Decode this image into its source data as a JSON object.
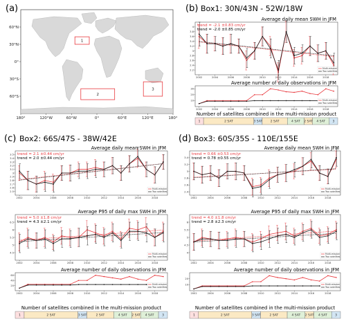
{
  "colors": {
    "red": "#e8383d",
    "black": "#1a1a1a",
    "map_land": "#d9d9d9",
    "region_box": "#e8383d",
    "sat2": "#fbe9c4",
    "sat3": "#d3e6f4",
    "sat4": "#dff0d8",
    "sat1": "#fde0e0"
  },
  "map": {
    "letter": "(a)",
    "lat_labels": [
      "60°N",
      "30°N",
      "0°",
      "30°S",
      "60°S"
    ],
    "lon_labels": [
      "180°",
      "120°W",
      "60°W",
      "0°",
      "60°E",
      "120°E",
      "180°"
    ],
    "regions": [
      {
        "label": "1",
        "lat": [
          30,
          43
        ],
        "lon": [
          -52,
          -18
        ]
      },
      {
        "label": "2",
        "lat": [
          -66,
          -47
        ],
        "lon": [
          -38,
          42
        ]
      },
      {
        "label": "3",
        "lat": [
          -60,
          -35
        ],
        "lon": [
          110,
          155
        ]
      }
    ]
  },
  "legend": {
    "multi": "Multi-mission",
    "two": "Two satellites"
  },
  "sat_bar_title": "Number of satellites combined in the multi-mission product",
  "sat_segments": [
    {
      "label": "1",
      "start": 2002,
      "end": 2003,
      "kind": "sat1"
    },
    {
      "label": "2 SAT",
      "start": 2003,
      "end": 2009,
      "kind": "sat2"
    },
    {
      "label": "3 SAT",
      "start": 2009,
      "end": 2010,
      "kind": "sat3"
    },
    {
      "label": "2 SAT",
      "start": 2010,
      "end": 2013,
      "kind": "sat2"
    },
    {
      "label": "4 SAT",
      "start": 2013,
      "end": 2015,
      "kind": "sat4"
    },
    {
      "label": "2 SAT",
      "start": 2015,
      "end": 2016,
      "kind": "sat2"
    },
    {
      "label": "4 SAT",
      "start": 2016,
      "end": 2018,
      "kind": "sat4"
    },
    {
      "label": "3",
      "start": 2018,
      "end": 2019,
      "kind": "sat3"
    }
  ],
  "chart_data": [
    {
      "id": "b",
      "letter": "(b)",
      "title": "Box1: 30N/43N - 52W/18W",
      "swh": {
        "type": "line",
        "subtitle": "Average daily mean SWH in JFM",
        "trend_red": "trend = -2.1 ±0.83 cm/yr",
        "trend_black": "trend = -2.0 ±0.85 cm/yr",
        "x": [
          2002,
          2003,
          2004,
          2005,
          2006,
          2007,
          2008,
          2009,
          2010,
          2011,
          2012,
          2013,
          2014,
          2015,
          2016,
          2017,
          2018,
          2019
        ],
        "ylim": [
          2.0,
          4.2
        ],
        "yticks": [
          2.2,
          2.4,
          2.6,
          2.8,
          3.0,
          3.2,
          3.4,
          3.6,
          3.8,
          4.0
        ],
        "series": [
          {
            "name": "Multi-mission",
            "color": "red",
            "values": [
              3.6,
              3.3,
              3.3,
              3.2,
              3.3,
              3.2,
              2.6,
              3.0,
              3.6,
              3.2,
              2.1,
              3.8,
              2.7,
              2.8,
              3.2,
              2.9,
              3.0,
              2.4
            ]
          },
          {
            "name": "Two satellites",
            "color": "black",
            "values": [
              3.7,
              3.3,
              3.3,
              3.2,
              3.3,
              3.2,
              2.7,
              3.0,
              3.6,
              3.1,
              2.2,
              3.8,
              2.8,
              2.9,
              3.2,
              2.9,
              3.0,
              2.5
            ]
          }
        ],
        "errors": [
          0.5,
          0.4,
          0.3,
          0.35,
          0.4,
          0.3,
          0.4,
          0.35,
          0.4,
          0.4,
          0.4,
          0.45,
          0.35,
          0.35,
          0.4,
          0.35,
          0.35,
          0.4
        ],
        "xticks": [
          2002,
          2004,
          2006,
          2008,
          2010,
          2012,
          2014,
          2016,
          2018
        ]
      },
      "obs": {
        "type": "line",
        "subtitle": "Average number of daily observations in JFM",
        "x": [
          2002,
          2003,
          2004,
          2005,
          2006,
          2007,
          2008,
          2009,
          2010,
          2011,
          2012,
          2013,
          2014,
          2015,
          2016,
          2017,
          2018,
          2019
        ],
        "ylim": [
          0,
          35
        ],
        "yticks": [
          10,
          20,
          30
        ],
        "series": [
          {
            "name": "Multi-mission",
            "color": "red",
            "values": [
              5,
              10,
              10,
              10,
              10,
              10,
              10,
              20,
              20,
              30,
              28,
              25,
              24,
              26,
              22,
              20,
              30,
              26
            ]
          },
          {
            "name": "Two satellites",
            "color": "black",
            "values": [
              5,
              9,
              9,
              9,
              9,
              9,
              9,
              10,
              10,
              10,
              10,
              10,
              10,
              10,
              10,
              10,
              10,
              10
            ]
          }
        ]
      }
    },
    {
      "id": "c",
      "letter": "(c)",
      "title": "Box2: 66S/47S - 38W/42E",
      "swh": {
        "type": "line",
        "subtitle": "Average daily mean SWH in JFM",
        "trend_red": "trend = 2.1 ±0.44 cm/yr",
        "trend_black": "trend = 2.0 ±0.44 cm/yr",
        "x": [
          2002,
          2003,
          2004,
          2005,
          2006,
          2007,
          2008,
          2009,
          2010,
          2011,
          2012,
          2013,
          2014,
          2015,
          2016,
          2017,
          2018,
          2019
        ],
        "ylim": [
          2.4,
          3.6
        ],
        "yticks": [
          2.5,
          2.6,
          2.7,
          2.8,
          2.9,
          3.0,
          3.1,
          3.2,
          3.3,
          3.4,
          3.5
        ],
        "series": [
          {
            "name": "Multi-mission",
            "color": "red",
            "values": [
              3.0,
              2.8,
              2.7,
              2.8,
              2.75,
              3.0,
              3.0,
              3.1,
              3.1,
              3.15,
              3.1,
              3.2,
              3.0,
              3.25,
              3.4,
              3.1,
              2.95,
              3.3
            ]
          },
          {
            "name": "Two satellites",
            "color": "black",
            "values": [
              3.05,
              2.8,
              2.7,
              2.75,
              2.7,
              3.0,
              3.0,
              3.05,
              3.05,
              3.1,
              3.1,
              3.2,
              3.0,
              3.25,
              3.45,
              3.1,
              2.95,
              3.3
            ]
          }
        ],
        "errors": [
          0.2,
          0.25,
          0.22,
          0.25,
          0.22,
          0.2,
          0.22,
          0.2,
          0.2,
          0.22,
          0.2,
          0.22,
          0.2,
          0.22,
          0.25,
          0.2,
          0.22,
          0.2
        ],
        "xticks": [
          2002,
          2004,
          2006,
          2008,
          2010,
          2012,
          2014,
          2016,
          2018
        ]
      },
      "p95": {
        "type": "line",
        "subtitle": "Average P95 of daily max SWH in JFM",
        "trend_red": "trend = 5.0 ±1.8 cm/yr",
        "trend_black": "trend = 4.3 ±2.1 cm/yr",
        "x": [
          2002,
          2003,
          2004,
          2005,
          2006,
          2007,
          2008,
          2009,
          2010,
          2011,
          2012,
          2013,
          2014,
          2015,
          2016,
          2017,
          2018,
          2019
        ],
        "ylim": [
          4.0,
          7.0
        ],
        "yticks": [
          4.5,
          5.0,
          5.5,
          6.0,
          6.5
        ],
        "series": [
          {
            "name": "Multi-mission",
            "color": "red",
            "values": [
              5.2,
              5.5,
              5.3,
              5.5,
              5.2,
              5.6,
              5.5,
              5.5,
              6.0,
              5.8,
              5.6,
              5.9,
              5.4,
              6.1,
              6.0,
              6.2,
              5.5,
              5.9
            ]
          },
          {
            "name": "Two satellites",
            "color": "black",
            "values": [
              5.1,
              5.4,
              5.3,
              5.4,
              5.1,
              5.4,
              5.4,
              5.5,
              5.6,
              5.7,
              5.5,
              5.8,
              5.3,
              5.9,
              5.9,
              5.8,
              5.5,
              5.8
            ]
          }
        ],
        "errors": [
          0.6,
          0.6,
          0.5,
          0.6,
          0.5,
          0.55,
          0.55,
          0.6,
          0.6,
          0.6,
          0.55,
          0.6,
          0.5,
          0.6,
          0.6,
          0.6,
          0.55,
          0.6
        ],
        "xticks": [
          2002,
          2004,
          2006,
          2008,
          2010,
          2012,
          2014,
          2016,
          2018
        ]
      },
      "obs": {
        "type": "line",
        "subtitle": "Average number of daily observations in JFM",
        "x": [
          2002,
          2003,
          2004,
          2005,
          2006,
          2007,
          2008,
          2009,
          2010,
          2011,
          2012,
          2013,
          2014,
          2015,
          2016,
          2017,
          2018,
          2019
        ],
        "ylim": [
          0,
          70
        ],
        "yticks": [
          20,
          40,
          60
        ],
        "series": [
          {
            "name": "Multi-mission",
            "color": "red",
            "values": [
              10,
              25,
              25,
              25,
              25,
              25,
              25,
              40,
              40,
              60,
              55,
              50,
              45,
              55,
              45,
              40,
              60,
              55
            ]
          },
          {
            "name": "Two satellites",
            "color": "black",
            "values": [
              10,
              22,
              22,
              22,
              22,
              22,
              22,
              24,
              24,
              24,
              24,
              24,
              24,
              24,
              24,
              24,
              24,
              24
            ]
          }
        ]
      }
    },
    {
      "id": "d",
      "letter": "(d)",
      "title": "Box3: 60S/35S - 110E/155E",
      "swh": {
        "type": "line",
        "subtitle": "Average daily mean SWH in JFM",
        "trend_red": "trend = 0.66 ±0.53 cm/yr",
        "trend_black": "trend = 0.78 ±0.55 cm/yr",
        "x": [
          2002,
          2003,
          2004,
          2005,
          2006,
          2007,
          2008,
          2009,
          2010,
          2011,
          2012,
          2013,
          2014,
          2015,
          2016,
          2017,
          2018,
          2019
        ],
        "ylim": [
          2.3,
          3.6
        ],
        "yticks": [
          2.4,
          2.6,
          2.8,
          3.0,
          3.2,
          3.4
        ],
        "series": [
          {
            "name": "Multi-mission",
            "color": "red",
            "values": [
              3.0,
              2.9,
              2.95,
              2.8,
              3.0,
              3.0,
              2.95,
              2.55,
              2.6,
              2.8,
              2.9,
              2.95,
              3.0,
              3.15,
              3.3,
              2.95,
              2.85,
              3.35
            ]
          },
          {
            "name": "Two satellites",
            "color": "black",
            "values": [
              3.0,
              2.9,
              2.95,
              2.8,
              3.0,
              3.0,
              2.95,
              2.5,
              2.55,
              2.75,
              2.9,
              2.95,
              3.05,
              3.15,
              3.35,
              2.95,
              2.85,
              3.4
            ]
          }
        ],
        "errors": [
          0.25,
          0.25,
          0.22,
          0.25,
          0.22,
          0.25,
          0.22,
          0.25,
          0.22,
          0.25,
          0.22,
          0.25,
          0.22,
          0.25,
          0.25,
          0.22,
          0.22,
          0.25
        ],
        "xticks": [
          2002,
          2004,
          2006,
          2008,
          2010,
          2012,
          2014,
          2016,
          2018
        ]
      },
      "p95": {
        "type": "line",
        "subtitle": "Average P95 of daily max SWH in JFM",
        "trend_red": "trend = 4.0 ±1.8 cm/yr",
        "trend_black": "trend = 2.8 ±2.3 cm/yr",
        "x": [
          2002,
          2003,
          2004,
          2005,
          2006,
          2007,
          2008,
          2009,
          2010,
          2011,
          2012,
          2013,
          2014,
          2015,
          2016,
          2017,
          2018,
          2019
        ],
        "ylim": [
          3.5,
          6.5
        ],
        "yticks": [
          4.0,
          4.5,
          5.0,
          5.5,
          6.0
        ],
        "series": [
          {
            "name": "Multi-mission",
            "color": "red",
            "values": [
              4.7,
              5.0,
              4.9,
              4.8,
              4.9,
              5.0,
              4.9,
              4.7,
              4.9,
              5.2,
              5.3,
              5.4,
              5.1,
              5.4,
              5.6,
              5.1,
              5.2,
              5.5
            ]
          },
          {
            "name": "Two satellites",
            "color": "black",
            "values": [
              4.7,
              4.9,
              4.9,
              4.8,
              4.8,
              4.9,
              4.9,
              4.6,
              4.7,
              4.9,
              5.1,
              5.2,
              5.0,
              5.3,
              5.5,
              5.0,
              5.1,
              5.4
            ]
          }
        ],
        "errors": [
          0.55,
          0.55,
          0.5,
          0.55,
          0.5,
          0.55,
          0.5,
          0.55,
          0.5,
          0.55,
          0.5,
          0.55,
          0.5,
          0.55,
          0.55,
          0.5,
          0.5,
          0.55
        ],
        "xticks": [
          2002,
          2004,
          2006,
          2008,
          2010,
          2012,
          2014,
          2016,
          2018
        ]
      },
      "obs": {
        "type": "line",
        "subtitle": "Average number of daily observations in JFM",
        "x": [
          2002,
          2003,
          2004,
          2005,
          2006,
          2007,
          2008,
          2009,
          2010,
          2011,
          2012,
          2013,
          2014,
          2015,
          2016,
          2017,
          2018,
          2019
        ],
        "ylim": [
          0,
          30
        ],
        "yticks": [
          10,
          20
        ],
        "series": [
          {
            "name": "Multi-mission",
            "color": "red",
            "values": [
              3,
              8,
              8,
              8,
              8,
              8,
              8,
              15,
              15,
              25,
              22,
              20,
              18,
              22,
              18,
              16,
              25,
              22
            ]
          },
          {
            "name": "Two satellites",
            "color": "black",
            "values": [
              3,
              7,
              7,
              7,
              7,
              7,
              7,
              8,
              8,
              8,
              8,
              8,
              8,
              8,
              8,
              8,
              8,
              8
            ]
          }
        ]
      }
    }
  ]
}
